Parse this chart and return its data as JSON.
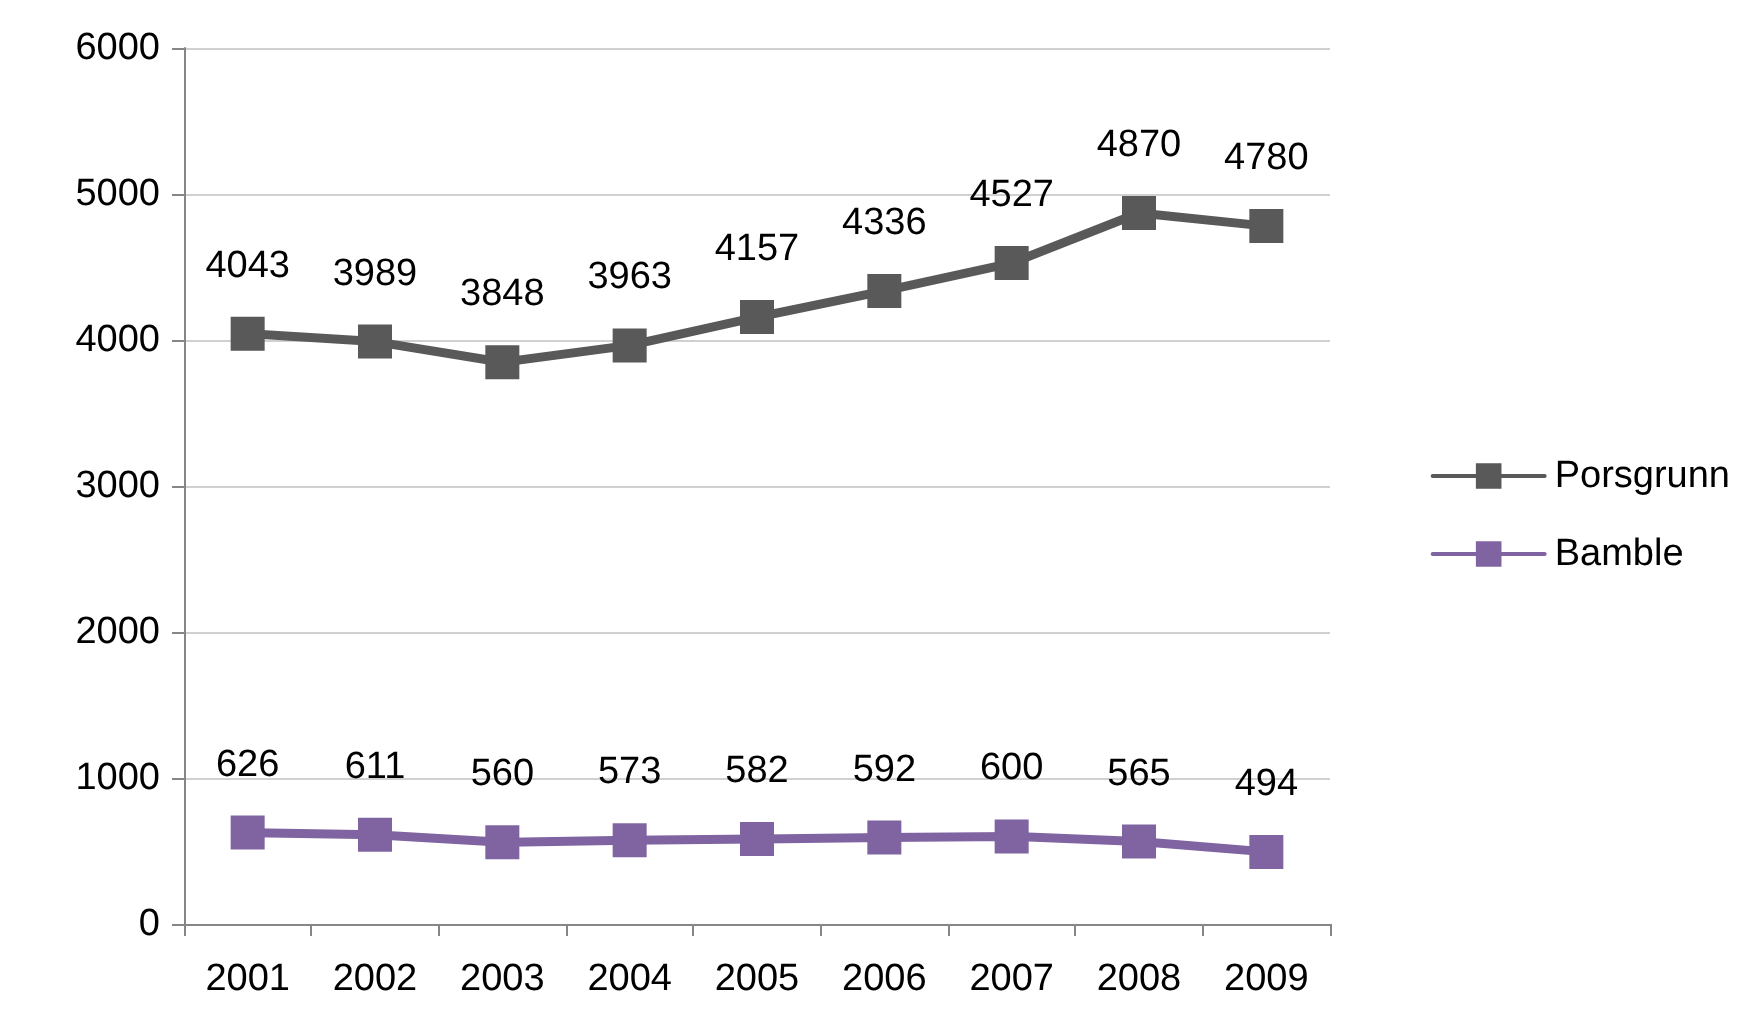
{
  "chart_data": {
    "type": "line",
    "categories": [
      "2001",
      "2002",
      "2003",
      "2004",
      "2005",
      "2006",
      "2007",
      "2008",
      "2009"
    ],
    "series": [
      {
        "name": "Porsgrunn",
        "color": "#595959",
        "values": [
          4043,
          3989,
          3848,
          3963,
          4157,
          4336,
          4527,
          4870,
          4780
        ]
      },
      {
        "name": "Bamble",
        "color": "#8064a2",
        "values": [
          626,
          611,
          560,
          573,
          582,
          592,
          600,
          565,
          494
        ]
      }
    ],
    "ylim": [
      0,
      6000
    ],
    "yticks": [
      0,
      1000,
      2000,
      3000,
      4000,
      5000,
      6000
    ],
    "grid": "y",
    "legend": "right",
    "marker": "square",
    "line_style": "solid",
    "data_labels": true
  }
}
